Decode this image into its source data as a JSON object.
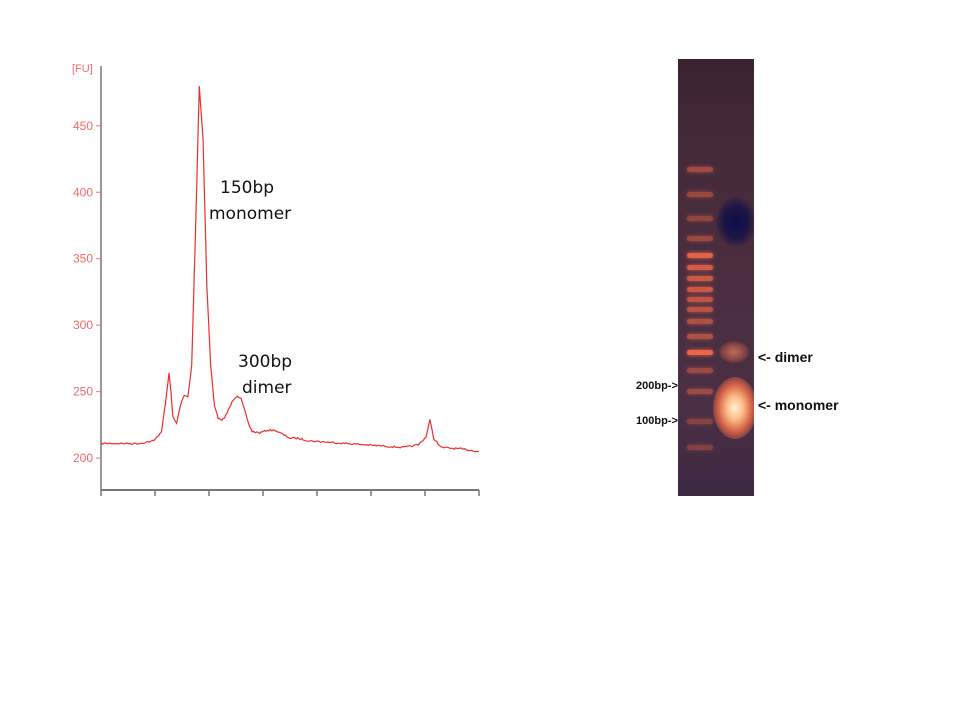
{
  "chart_data": [
    {
      "type": "line",
      "unit_label": "[FU]",
      "ylim": [
        176,
        495
      ],
      "y_ticks": [
        200,
        250,
        300,
        350,
        400,
        450
      ],
      "x_tick_count": 8,
      "x_tick_labels": [],
      "grid": false,
      "line_color": "#e8302f",
      "series": [
        {
          "x": [
            0,
            4,
            10,
            14,
            16,
            17,
            18,
            18.5,
            19,
            19.5,
            20,
            21,
            22,
            23,
            24,
            25,
            26,
            27,
            28,
            29,
            30,
            31,
            32,
            33,
            34,
            35,
            36,
            37,
            38,
            39,
            40,
            42,
            44,
            46,
            48,
            50,
            52,
            55,
            60,
            70,
            80,
            84,
            86,
            87,
            88,
            90,
            95,
            100
          ],
          "values": [
            211,
            211,
            211,
            213,
            220,
            240,
            264,
            250,
            232,
            228,
            226,
            240,
            247,
            246,
            270,
            370,
            480,
            440,
            330,
            270,
            240,
            230,
            228,
            232,
            238,
            244,
            247,
            245,
            236,
            226,
            220,
            219,
            221,
            221,
            218,
            215,
            215,
            213,
            212,
            210,
            208,
            210,
            216,
            229,
            215,
            208,
            207,
            205
          ]
        }
      ],
      "annotations": [
        {
          "lines": [
            "150bp",
            "monomer"
          ]
        },
        {
          "lines": [
            "300bp",
            "dimer"
          ]
        }
      ]
    }
  ],
  "gel": {
    "ladder_labels": [
      "200bp->",
      "100bp->"
    ],
    "band_labels": [
      "<- dimer",
      "<- monomer"
    ],
    "ladder_bands": [
      {
        "pos": 0.253,
        "strength": 0.5
      },
      {
        "pos": 0.31,
        "strength": 0.45
      },
      {
        "pos": 0.365,
        "strength": 0.4
      },
      {
        "pos": 0.41,
        "strength": 0.45
      },
      {
        "pos": 0.45,
        "strength": 0.85
      },
      {
        "pos": 0.478,
        "strength": 0.75
      },
      {
        "pos": 0.503,
        "strength": 0.7
      },
      {
        "pos": 0.527,
        "strength": 0.7
      },
      {
        "pos": 0.55,
        "strength": 0.65
      },
      {
        "pos": 0.573,
        "strength": 0.6
      },
      {
        "pos": 0.6,
        "strength": 0.55
      },
      {
        "pos": 0.634,
        "strength": 0.55
      },
      {
        "pos": 0.672,
        "strength": 0.9
      },
      {
        "pos": 0.712,
        "strength": 0.45
      },
      {
        "pos": 0.762,
        "strength": 0.45
      },
      {
        "pos": 0.83,
        "strength": 0.35
      },
      {
        "pos": 0.89,
        "strength": 0.35
      }
    ],
    "colors": {
      "ladder_band": "#ff6b4a",
      "monomer_band": "#ffd2a0",
      "dimer_band": "#ff8a60",
      "well_shadow": "#0d0c4a"
    }
  }
}
